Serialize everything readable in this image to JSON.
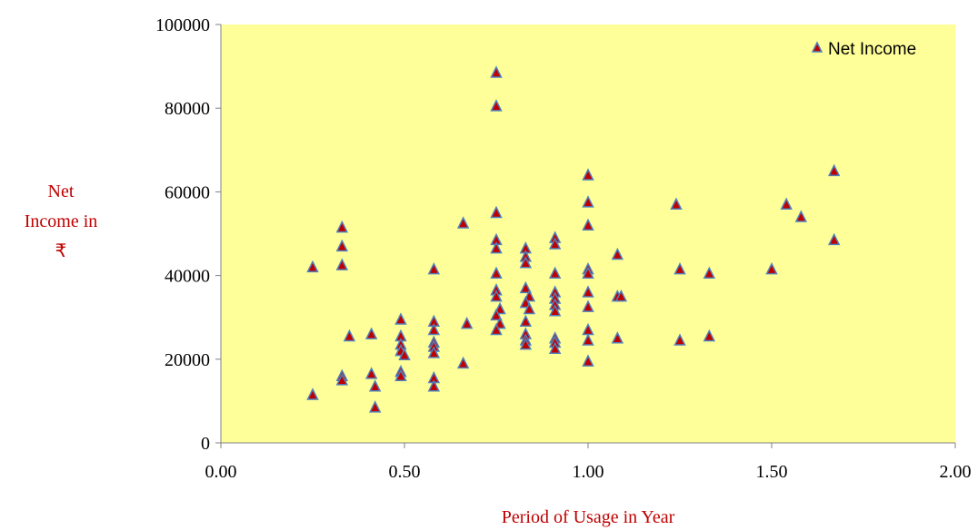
{
  "colors": {
    "plot_background": "#ffff99",
    "marker_fill": "#c00000",
    "marker_stroke": "#4f81bd",
    "axis_title_color": "#c00000",
    "axis_line": "#808080"
  },
  "chart_data": {
    "type": "scatter",
    "title": "",
    "xlabel": "Period of Usage in Year",
    "ylabel_lines": [
      "Net",
      "Income in",
      "₹"
    ],
    "xlim": [
      0,
      2
    ],
    "ylim": [
      0,
      100000
    ],
    "x_ticks": [
      "0.00",
      "0.50",
      "1.00",
      "1.50",
      "2.00"
    ],
    "y_ticks": [
      "0",
      "20000",
      "40000",
      "60000",
      "80000",
      "100000"
    ],
    "grid": false,
    "legend_position": "top-right",
    "series": [
      {
        "name": "Net Income",
        "marker": "triangle",
        "points": [
          [
            0.25,
            42000
          ],
          [
            0.25,
            11500
          ],
          [
            0.33,
            51500
          ],
          [
            0.33,
            47000
          ],
          [
            0.33,
            42500
          ],
          [
            0.33,
            16000
          ],
          [
            0.33,
            15000
          ],
          [
            0.35,
            25500
          ],
          [
            0.41,
            26000
          ],
          [
            0.41,
            16500
          ],
          [
            0.42,
            13500
          ],
          [
            0.42,
            8500
          ],
          [
            0.49,
            29500
          ],
          [
            0.49,
            25500
          ],
          [
            0.49,
            23500
          ],
          [
            0.49,
            22000
          ],
          [
            0.49,
            17000
          ],
          [
            0.49,
            16000
          ],
          [
            0.5,
            21000
          ],
          [
            0.58,
            41500
          ],
          [
            0.58,
            29000
          ],
          [
            0.58,
            27000
          ],
          [
            0.58,
            24000
          ],
          [
            0.58,
            23000
          ],
          [
            0.58,
            21500
          ],
          [
            0.58,
            15500
          ],
          [
            0.58,
            13500
          ],
          [
            0.66,
            52500
          ],
          [
            0.67,
            28500
          ],
          [
            0.66,
            19000
          ],
          [
            0.75,
            88500
          ],
          [
            0.75,
            80500
          ],
          [
            0.75,
            55000
          ],
          [
            0.75,
            48500
          ],
          [
            0.75,
            46500
          ],
          [
            0.75,
            40500
          ],
          [
            0.75,
            36500
          ],
          [
            0.75,
            35000
          ],
          [
            0.76,
            32000
          ],
          [
            0.75,
            30500
          ],
          [
            0.76,
            28500
          ],
          [
            0.75,
            27000
          ],
          [
            0.83,
            46500
          ],
          [
            0.83,
            44500
          ],
          [
            0.83,
            43000
          ],
          [
            0.83,
            37000
          ],
          [
            0.84,
            35000
          ],
          [
            0.83,
            33500
          ],
          [
            0.84,
            32000
          ],
          [
            0.83,
            29000
          ],
          [
            0.83,
            26000
          ],
          [
            0.83,
            24500
          ],
          [
            0.83,
            23500
          ],
          [
            0.91,
            49000
          ],
          [
            0.91,
            47500
          ],
          [
            0.91,
            40500
          ],
          [
            0.91,
            36000
          ],
          [
            0.91,
            34500
          ],
          [
            0.91,
            33000
          ],
          [
            0.91,
            31500
          ],
          [
            0.91,
            25000
          ],
          [
            0.91,
            24000
          ],
          [
            0.91,
            22500
          ],
          [
            1.0,
            64000
          ],
          [
            1.0,
            57500
          ],
          [
            1.0,
            52000
          ],
          [
            1.0,
            41500
          ],
          [
            1.0,
            40500
          ],
          [
            1.0,
            36000
          ],
          [
            1.0,
            32500
          ],
          [
            1.0,
            27000
          ],
          [
            1.0,
            24500
          ],
          [
            1.0,
            19500
          ],
          [
            1.08,
            45000
          ],
          [
            1.08,
            35000
          ],
          [
            1.09,
            35000
          ],
          [
            1.08,
            25000
          ],
          [
            1.24,
            57000
          ],
          [
            1.25,
            41500
          ],
          [
            1.25,
            24500
          ],
          [
            1.33,
            40500
          ],
          [
            1.33,
            25500
          ],
          [
            1.5,
            41500
          ],
          [
            1.54,
            57000
          ],
          [
            1.58,
            54000
          ],
          [
            1.67,
            65000
          ],
          [
            1.67,
            48500
          ]
        ]
      }
    ]
  }
}
